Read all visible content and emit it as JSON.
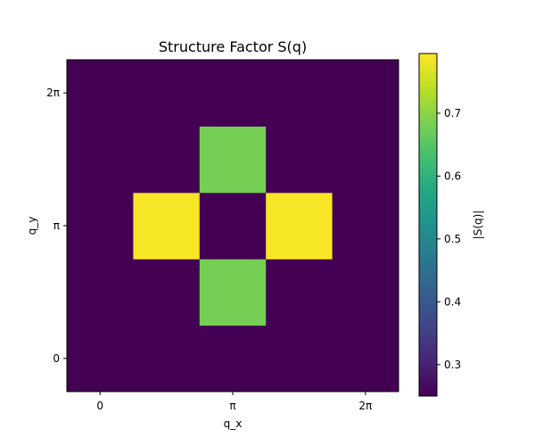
{
  "chart_data": {
    "type": "heatmap",
    "title": "Structure Factor S(q)",
    "xlabel": "q_x",
    "ylabel": "q_y",
    "x_ticks": [
      {
        "value": 0,
        "label": "0"
      },
      {
        "value": 2,
        "label": "π"
      },
      {
        "value": 4,
        "label": "2π"
      }
    ],
    "y_ticks": [
      {
        "value": 0,
        "label": "0"
      },
      {
        "value": 2,
        "label": "π"
      },
      {
        "value": 4,
        "label": "2π"
      }
    ],
    "grid_size": 5,
    "origin": "lower",
    "matrix": [
      [
        0.25,
        0.25,
        0.25,
        0.25,
        0.25
      ],
      [
        0.25,
        0.25,
        0.68,
        0.25,
        0.25
      ],
      [
        0.25,
        0.79,
        0.25,
        0.79,
        0.25
      ],
      [
        0.25,
        0.25,
        0.68,
        0.25,
        0.25
      ],
      [
        0.25,
        0.25,
        0.25,
        0.25,
        0.25
      ]
    ],
    "colormap": "viridis",
    "colorbar": {
      "label": "|S(q)|",
      "vmin": 0.25,
      "vmax": 0.795,
      "ticks": [
        0.3,
        0.4,
        0.5,
        0.6,
        0.7
      ]
    },
    "grid": false
  }
}
